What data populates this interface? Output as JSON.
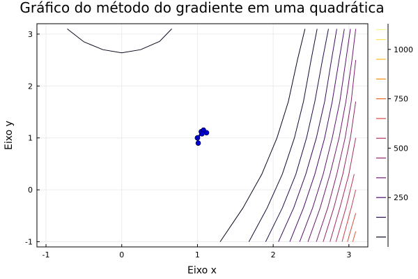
{
  "chart_data": {
    "type": "contour",
    "title": "Gráfico do método do gradiente em uma quadrática",
    "xlabel": "Eixo x",
    "ylabel": "Eixo y",
    "xlim": [
      -1.12,
      3.25
    ],
    "ylim": [
      -1.1,
      3.2
    ],
    "xticks": [
      "-1",
      "0",
      "1",
      "2",
      "3"
    ],
    "yticks": [
      "-1",
      "0",
      "1",
      "2",
      "3"
    ],
    "grid": true,
    "contours": [
      {
        "level": 50,
        "points": [
          [
            -0.72,
            3.1
          ],
          [
            -0.5,
            2.85
          ],
          [
            -0.25,
            2.7
          ],
          [
            0.0,
            2.64
          ],
          [
            0.25,
            2.7
          ],
          [
            0.5,
            2.86
          ],
          [
            0.66,
            3.1
          ]
        ]
      },
      {
        "level": 50,
        "points": [
          [
            1.3,
            -1.0
          ],
          [
            1.6,
            -0.35
          ],
          [
            1.85,
            0.3
          ],
          [
            2.05,
            1.0
          ],
          [
            2.2,
            1.7
          ],
          [
            2.32,
            2.5
          ],
          [
            2.42,
            3.1
          ]
        ]
      },
      {
        "level": 100,
        "points": [
          [
            1.68,
            -1.0
          ],
          [
            1.92,
            -0.35
          ],
          [
            2.12,
            0.3
          ],
          [
            2.28,
            1.0
          ],
          [
            2.4,
            1.7
          ],
          [
            2.5,
            2.5
          ],
          [
            2.58,
            3.1
          ]
        ]
      },
      {
        "level": 150,
        "points": [
          [
            1.9,
            -1.0
          ],
          [
            2.12,
            -0.35
          ],
          [
            2.3,
            0.3
          ],
          [
            2.44,
            1.0
          ],
          [
            2.55,
            1.7
          ],
          [
            2.65,
            2.5
          ],
          [
            2.73,
            3.1
          ]
        ]
      },
      {
        "level": 200,
        "points": [
          [
            2.07,
            -1.0
          ],
          [
            2.27,
            -0.35
          ],
          [
            2.43,
            0.3
          ],
          [
            2.57,
            1.0
          ],
          [
            2.68,
            1.7
          ],
          [
            2.77,
            2.5
          ],
          [
            2.84,
            3.1
          ]
        ]
      },
      {
        "level": 250,
        "points": [
          [
            2.22,
            -1.0
          ],
          [
            2.4,
            -0.35
          ],
          [
            2.55,
            0.3
          ],
          [
            2.68,
            1.0
          ],
          [
            2.78,
            1.7
          ],
          [
            2.87,
            2.5
          ],
          [
            2.94,
            3.1
          ]
        ]
      },
      {
        "level": 300,
        "points": [
          [
            2.35,
            -1.0
          ],
          [
            2.52,
            -0.35
          ],
          [
            2.66,
            0.3
          ],
          [
            2.78,
            1.0
          ],
          [
            2.88,
            1.7
          ],
          [
            2.96,
            2.5
          ],
          [
            3.02,
            3.1
          ]
        ]
      },
      {
        "level": 350,
        "points": [
          [
            2.46,
            -1.0
          ],
          [
            2.62,
            -0.35
          ],
          [
            2.75,
            0.3
          ],
          [
            2.87,
            1.0
          ],
          [
            2.96,
            1.7
          ],
          [
            3.04,
            2.5
          ],
          [
            3.09,
            3.1
          ]
        ]
      },
      {
        "level": 400,
        "points": [
          [
            2.57,
            -1.0
          ],
          [
            2.72,
            -0.35
          ],
          [
            2.84,
            0.3
          ],
          [
            2.95,
            1.0
          ],
          [
            3.03,
            1.7
          ],
          [
            3.09,
            2.5
          ]
        ]
      },
      {
        "level": 450,
        "points": [
          [
            2.66,
            -1.0
          ],
          [
            2.8,
            -0.35
          ],
          [
            2.92,
            0.3
          ],
          [
            3.02,
            1.0
          ],
          [
            3.09,
            1.7
          ]
        ]
      },
      {
        "level": 500,
        "points": [
          [
            2.75,
            -1.0
          ],
          [
            2.88,
            -0.35
          ],
          [
            3.0,
            0.3
          ],
          [
            3.09,
            1.0
          ]
        ]
      },
      {
        "level": 550,
        "points": [
          [
            2.83,
            -1.0
          ],
          [
            2.96,
            -0.35
          ],
          [
            3.07,
            0.3
          ]
        ]
      },
      {
        "level": 600,
        "points": [
          [
            2.91,
            -1.0
          ],
          [
            3.03,
            -0.35
          ],
          [
            3.09,
            0.0
          ]
        ]
      },
      {
        "level": 650,
        "points": [
          [
            2.98,
            -1.0
          ],
          [
            3.09,
            -0.45
          ]
        ]
      },
      {
        "level": 700,
        "points": [
          [
            3.05,
            -1.0
          ],
          [
            3.09,
            -0.8
          ]
        ]
      }
    ],
    "path": [
      [
        1.0,
        1.0
      ],
      [
        1.05,
        1.12
      ],
      [
        1.08,
        1.15
      ],
      [
        1.12,
        1.1
      ],
      [
        1.06,
        1.08
      ],
      [
        1.0,
        1.0
      ],
      [
        1.01,
        0.9
      ]
    ],
    "colorbar": {
      "min": 0,
      "max": 1130,
      "ticks": [
        "250",
        "500",
        "750",
        "1000"
      ],
      "tick_values": [
        250,
        500,
        750,
        1000
      ],
      "levels": [
        50,
        150,
        250,
        350,
        450,
        550,
        650,
        750,
        850,
        950,
        1050,
        1100
      ],
      "colors": [
        "#000004",
        "#1b0c41",
        "#4a0c6b",
        "#781c6d",
        "#a52c60",
        "#cf4446",
        "#ed6925",
        "#fb9b06",
        "#f7d13d",
        "#fcffa4"
      ]
    },
    "path_color": "#0000cc"
  }
}
